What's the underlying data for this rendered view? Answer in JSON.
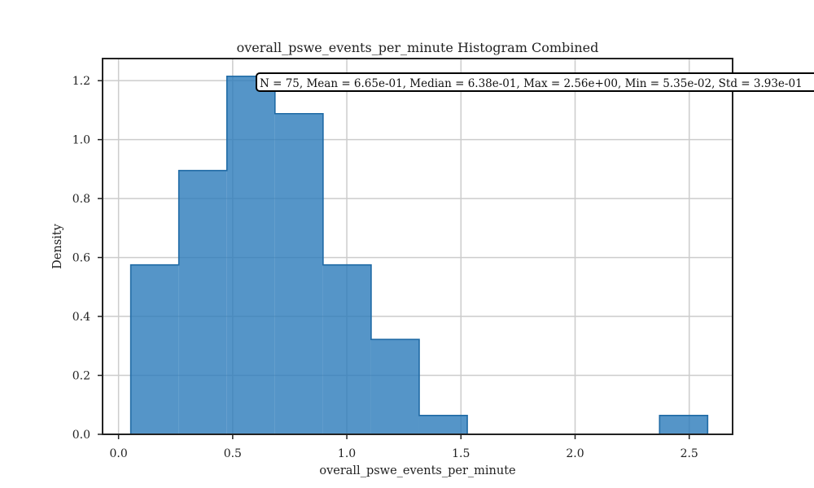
{
  "chart_data": {
    "type": "bar",
    "title": "overall_pswe_events_per_minute Histogram Combined",
    "xlabel": "overall_pswe_events_per_minute",
    "ylabel": "Density",
    "xlim": [
      -0.07,
      2.69
    ],
    "ylim": [
      0,
      1.275
    ],
    "xticks": [
      "0.0",
      "0.5",
      "1.0",
      "1.5",
      "2.0",
      "2.5"
    ],
    "xtick_values": [
      0.0,
      0.5,
      1.0,
      1.5,
      2.0,
      2.5
    ],
    "yticks": [
      "0.0",
      "0.2",
      "0.4",
      "0.6",
      "0.8",
      "1.0",
      "1.2"
    ],
    "ytick_values": [
      0.0,
      0.2,
      0.4,
      0.6,
      0.8,
      1.0,
      1.2
    ],
    "grid": true,
    "bin_edges": [
      0.0535,
      0.2641,
      0.4747,
      0.6853,
      0.8959,
      1.1065,
      1.3171,
      1.5277,
      1.7383,
      1.9489,
      2.1595,
      2.3701,
      2.5807
    ],
    "densities": [
      0.575,
      0.895,
      1.215,
      1.088,
      0.575,
      0.322,
      0.064,
      0.0,
      0.0,
      0.0,
      0.0,
      0.064
    ],
    "stats_text": "N = 75, Mean = 6.65e-01, Median = 6.38e-01, Max = 2.56e+00, Min = 5.35e-02, Std = 3.93e-01",
    "colors": {
      "fill": "#2b7bba",
      "edge": "#1f6aa5",
      "grid": "#cccccc",
      "axis": "#222222"
    }
  }
}
